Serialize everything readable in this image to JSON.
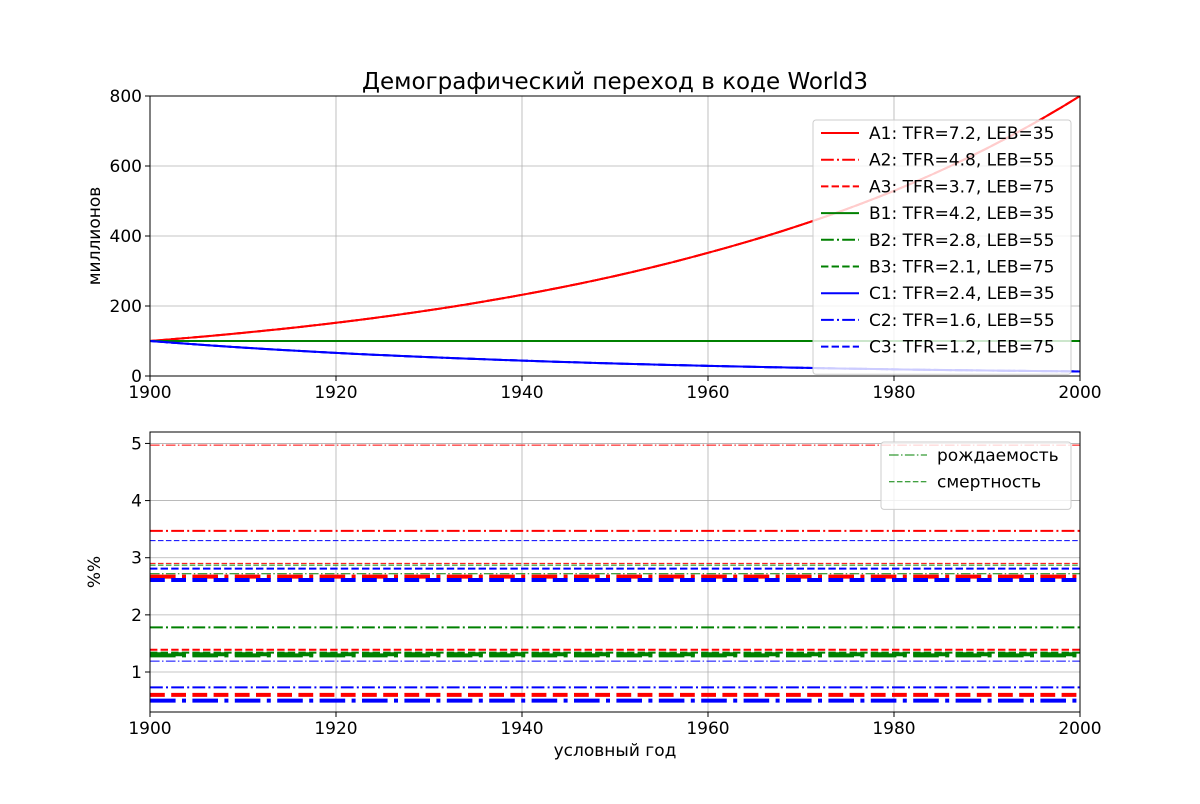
{
  "title": "Демографический переход в коде World3",
  "colors": {
    "A": "#ff0000",
    "B": "#008000",
    "C": "#0000ff",
    "grid": "#b0b0b0",
    "legend_border": "#cccccc"
  },
  "chart_data": [
    {
      "type": "line",
      "title": "Демографический переход в коде World3",
      "xlabel": "",
      "ylabel": "миллионов",
      "xlim": [
        1900,
        2000
      ],
      "ylim": [
        0,
        800
      ],
      "xticks": [
        1900,
        1920,
        1940,
        1960,
        1980,
        2000
      ],
      "yticks": [
        0,
        200,
        400,
        600,
        800
      ],
      "grid": true,
      "legend_position": "top-right",
      "series": [
        {
          "name": "A1: TFR=7.2, LEB=35",
          "color": "red",
          "style": "solid",
          "width": 2,
          "x": [
            1900,
            1920,
            1940,
            1960,
            1980,
            2000
          ],
          "y": [
            100,
            152,
            232,
            352,
            529,
            800
          ]
        },
        {
          "name": "A2: TFR=4.8, LEB=55",
          "color": "red",
          "style": "dashdot",
          "width": 2,
          "x": [
            1900,
            1920,
            1940,
            1960,
            1980,
            2000
          ],
          "y": [
            100,
            152,
            232,
            352,
            529,
            800
          ]
        },
        {
          "name": "A3: TFR=3.7, LEB=75",
          "color": "red",
          "style": "dashed",
          "width": 2,
          "x": [
            1900,
            1920,
            1940,
            1960,
            1980,
            2000
          ],
          "y": [
            100,
            152,
            232,
            352,
            529,
            800
          ]
        },
        {
          "name": "B1: TFR=4.2, LEB=35",
          "color": "green",
          "style": "solid",
          "width": 2,
          "x": [
            1900,
            2000
          ],
          "y": [
            100,
            100
          ]
        },
        {
          "name": "B2: TFR=2.8, LEB=55",
          "color": "green",
          "style": "dashdot",
          "width": 2,
          "x": [
            1900,
            2000
          ],
          "y": [
            100,
            100
          ]
        },
        {
          "name": "B3: TFR=2.1, LEB=75",
          "color": "green",
          "style": "dashed",
          "width": 2,
          "x": [
            1900,
            2000
          ],
          "y": [
            100,
            100
          ]
        },
        {
          "name": "C1: TFR=2.4, LEB=35",
          "color": "blue",
          "style": "solid",
          "width": 2,
          "x": [
            1900,
            1920,
            1940,
            1960,
            1980,
            2000
          ],
          "y": [
            100,
            66,
            44,
            29,
            19,
            13
          ]
        },
        {
          "name": "C2: TFR=1.6, LEB=55",
          "color": "blue",
          "style": "dashdot",
          "width": 2,
          "x": [
            1900,
            1920,
            1940,
            1960,
            1980,
            2000
          ],
          "y": [
            100,
            66,
            44,
            29,
            19,
            13
          ]
        },
        {
          "name": "C3: TFR=1.2, LEB=75",
          "color": "blue",
          "style": "dashed",
          "width": 2,
          "x": [
            1900,
            1920,
            1940,
            1960,
            1980,
            2000
          ],
          "y": [
            100,
            66,
            44,
            29,
            19,
            13
          ]
        }
      ]
    },
    {
      "type": "line",
      "title": "",
      "xlabel": "условный год",
      "ylabel": "%%",
      "xlim": [
        1900,
        2000
      ],
      "ylim": [
        0.3,
        5.2
      ],
      "xticks": [
        1900,
        1920,
        1940,
        1960,
        1980,
        2000
      ],
      "yticks": [
        1,
        2,
        3,
        4,
        5
      ],
      "grid": true,
      "legend_position": "top-right",
      "legend": [
        {
          "name": "рождаемость",
          "color": "green",
          "style": "dashdot"
        },
        {
          "name": "смертность",
          "color": "green",
          "style": "dashed"
        }
      ],
      "series": [
        {
          "color": "red",
          "style": "dashdot",
          "width": 1,
          "y": 4.97
        },
        {
          "color": "red",
          "style": "dashed",
          "width": 1,
          "y": 2.9
        },
        {
          "color": "red",
          "style": "dashdot",
          "width": 2,
          "y": 3.47
        },
        {
          "color": "red",
          "style": "dashed",
          "width": 2,
          "y": 1.39
        },
        {
          "color": "red",
          "style": "dashdot",
          "width": 4,
          "y": 2.67
        },
        {
          "color": "red",
          "style": "dashed",
          "width": 4,
          "y": 0.6
        },
        {
          "color": "green",
          "style": "dashdot",
          "width": 1,
          "y": 2.72
        },
        {
          "color": "green",
          "style": "dashed",
          "width": 1,
          "y": 2.87
        },
        {
          "color": "green",
          "style": "dashdot",
          "width": 2,
          "y": 1.78
        },
        {
          "color": "green",
          "style": "dashed",
          "width": 2,
          "y": 1.34
        },
        {
          "color": "green",
          "style": "dashdot",
          "width": 4,
          "y": 1.29
        },
        {
          "color": "green",
          "style": "dashed",
          "width": 4,
          "y": 1.31
        },
        {
          "color": "blue",
          "style": "dashed",
          "width": 1,
          "y": 3.3
        },
        {
          "color": "blue",
          "style": "dashdot",
          "width": 1,
          "y": 1.19
        },
        {
          "color": "blue",
          "style": "dashdot",
          "width": 2,
          "y": 0.73
        },
        {
          "color": "blue",
          "style": "dashed",
          "width": 2,
          "y": 2.81
        },
        {
          "color": "blue",
          "style": "dashdot",
          "width": 4,
          "y": 0.5
        },
        {
          "color": "blue",
          "style": "dashed",
          "width": 4,
          "y": 2.61
        }
      ]
    }
  ]
}
